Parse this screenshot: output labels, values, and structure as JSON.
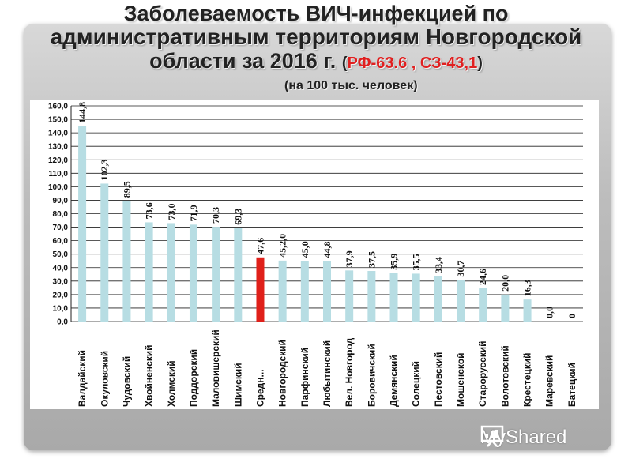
{
  "title": {
    "line1": "Заболеваемость ВИЧ-инфекцией по",
    "line2": "административным территориям Новгородской",
    "line3": "области за 2016 г.",
    "rates_open": "(",
    "rates_value": "РФ-63.6 , СЗ-43,1",
    "rates_close": ")"
  },
  "subtitle": "(на 100 тыс. человек)",
  "watermark": "MyShared",
  "colors": {
    "bar": "#b7dde3",
    "highlight_bar": "#e0201a",
    "grid": "#222222"
  },
  "chart_data": {
    "type": "bar",
    "categories": [
      "Валдайский",
      "Окуловский",
      "Чудовский",
      "Хвойненский",
      "Холмский",
      "Поддорский",
      "Маловишерский",
      "Шимский",
      "Средн...",
      "Новгородский",
      "Парфинский",
      "Любытинский",
      "Вел. Новгород",
      "Боровичский",
      "Демянский",
      "Солецкий",
      "Пестовский",
      "Мошенской",
      "Старорусский",
      "Волотовский",
      "Крестецкий",
      "Маревский",
      "Батецкий"
    ],
    "values": [
      144.8,
      102.3,
      89.5,
      73.6,
      73.0,
      71.9,
      70.3,
      69.3,
      47.6,
      45.2,
      45.0,
      44.8,
      37.9,
      37.5,
      35.9,
      35.5,
      33.4,
      30.7,
      24.6,
      20.0,
      16.3,
      0.0,
      0
    ],
    "data_labels": [
      "144,8",
      "102,3",
      "89,5",
      "73,6",
      "73,0",
      "71,9",
      "70,3",
      "69,3",
      "47,6",
      "45,2,0",
      "45,0",
      "44,8",
      "37,9",
      "37,5",
      "35,9",
      "35,5",
      "33,4",
      "30,7",
      "24,6",
      "20,0",
      "16,3",
      "0,0",
      "0"
    ],
    "highlight_index": 8,
    "ylim": [
      0,
      160
    ],
    "yticks": [
      "0,0",
      "10,0",
      "20,0",
      "30,0",
      "40,0",
      "50,0",
      "60,0",
      "70,0",
      "80,0",
      "90,0",
      "100,0",
      "110,0",
      "120,0",
      "130,0",
      "140,0",
      "150,0",
      "160,0"
    ],
    "grid": true
  }
}
